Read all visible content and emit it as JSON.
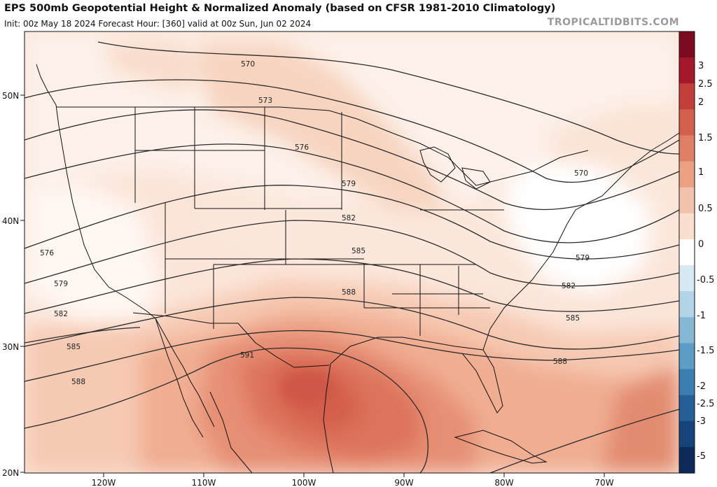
{
  "header": {
    "title": "EPS 500mb Geopotential Height & Normalized Anomaly (based on CFSR 1981-2010 Climatology)",
    "subtitle": "Init: 00z May 18 2024   Forecast Hour: [360]   valid at 00z Sun, Jun 02 2024",
    "brand": "TROPICALTIDBITS.COM"
  },
  "axes": {
    "lat_labels": [
      "50N",
      "40N",
      "30N",
      "20N"
    ],
    "lon_labels": [
      "120W",
      "110W",
      "100W",
      "90W",
      "80W",
      "70W"
    ]
  },
  "colorbar": {
    "labels": [
      "3",
      "2.5",
      "2",
      "1.5",
      "1",
      "0.5",
      "0",
      "-0.5",
      "-1",
      "-1.5",
      "-2",
      "-2.5",
      "-3",
      "-5"
    ],
    "colors": [
      "#7d0a1e",
      "#a3192b",
      "#c33f3c",
      "#d3604d",
      "#df7f65",
      "#eaa184",
      "#f2c3aa",
      "#fadfcf",
      "#ffffff",
      "#d7e9f2",
      "#b3d3e6",
      "#86b8d6",
      "#5c9cc5",
      "#3a7eb2",
      "#255f98",
      "#16447a",
      "#0d2a59"
    ]
  },
  "contours": {
    "labels": [
      "570",
      "573",
      "576",
      "579",
      "582",
      "585",
      "588",
      "591",
      "570",
      "579",
      "582",
      "585",
      "588",
      "576",
      "579",
      "582",
      "585",
      "588"
    ]
  }
}
